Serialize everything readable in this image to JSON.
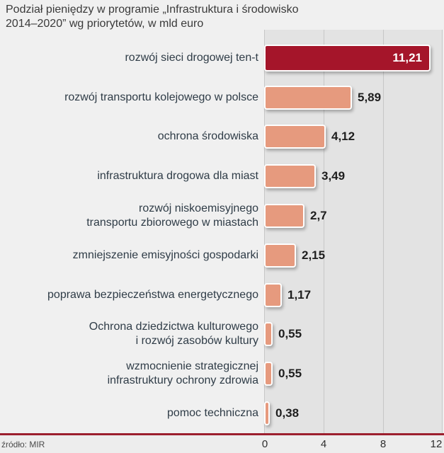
{
  "title": {
    "line1": "Podział pieniędzy w programie „Infrastruktura i środowisko",
    "line2": "2014–2020” wg priorytetów, w mld euro"
  },
  "source": "źródło: MIR",
  "colors": {
    "highlight_bar": "#a5152a",
    "bar": "#e69a7e",
    "plot_background": "#e3e3e3",
    "page_background": "#f0f0f0",
    "accent_line": "#9c1f2e"
  },
  "chart_data": {
    "type": "bar",
    "orientation": "horizontal",
    "title": "Podział pieniędzy w programie „Infrastruktura i środowisko 2014–2020” wg priorytetów, w mld euro",
    "categories": [
      "rozwój sieci drogowej ten-t",
      "rozwój transportu kolejowego w polsce",
      "ochrona środowiska",
      "infrastruktura drogowa dla miast",
      "rozwój niskoemisyjnego\ntransportu zbiorowego w miastach",
      "zmniejszenie emisyjności gospodarki",
      "poprawa bezpieczeństwa energetycznego",
      "Ochrona dziedzictwa kulturowego\ni rozwój zasobów kultury",
      "wzmocnienie strategicznej\ninfrastruktury ochrony zdrowia",
      "pomoc techniczna"
    ],
    "values": [
      11.21,
      5.89,
      4.12,
      3.49,
      2.7,
      2.15,
      1.17,
      0.55,
      0.55,
      0.38
    ],
    "value_labels": [
      "11,21",
      "5,89",
      "4,12",
      "3,49",
      "2,7",
      "2,15",
      "1,17",
      "0,55",
      "0,55",
      "0,38"
    ],
    "highlight_index": 0,
    "xlim": [
      0,
      12
    ],
    "x_ticks": [
      "0",
      "4",
      "8",
      "12"
    ],
    "grid": true,
    "legend": false,
    "source": "źródło: MIR"
  }
}
